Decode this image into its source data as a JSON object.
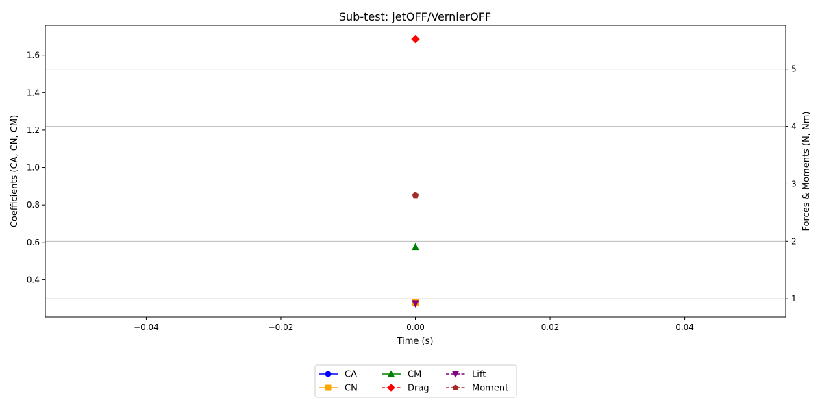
{
  "chart_data": {
    "type": "scatter",
    "title": "Sub-test: jetOFF/VernierOFF",
    "xlabel": "Time (s)",
    "ylabel_left": "Coefficients (CA, CN, CM)",
    "ylabel_right": "Forces & Moments (N, Nm)",
    "xlim": [
      -0.055,
      0.055
    ],
    "ylim_left": [
      0.2,
      1.76
    ],
    "ylim_right": [
      0.68,
      5.76
    ],
    "x_ticks": [
      -0.04,
      -0.02,
      0.0,
      0.02,
      0.04
    ],
    "x_tick_labels": [
      "−0.04",
      "−0.02",
      "0.00",
      "0.02",
      "0.04"
    ],
    "y_left_ticks": [
      0.4,
      0.6,
      0.8,
      1.0,
      1.2,
      1.4,
      1.6
    ],
    "y_left_tick_labels": [
      "0.4",
      "0.6",
      "0.8",
      "1.0",
      "1.2",
      "1.4",
      "1.6"
    ],
    "y_right_ticks": [
      1,
      2,
      3,
      4,
      5
    ],
    "y_right_tick_labels": [
      "1",
      "2",
      "3",
      "4",
      "5"
    ],
    "grid": "right-axis horizontal",
    "legend_position": "bottom-center",
    "series": [
      {
        "name": "CA",
        "axis": "left",
        "x": [
          0.0
        ],
        "y": [
          0.28
        ],
        "color": "#0000ff",
        "marker": "circle",
        "linestyle": "solid"
      },
      {
        "name": "CN",
        "axis": "left",
        "x": [
          0.0
        ],
        "y": [
          0.28
        ],
        "color": "#ffa500",
        "marker": "square",
        "linestyle": "solid"
      },
      {
        "name": "CM",
        "axis": "left",
        "x": [
          0.0
        ],
        "y": [
          0.575
        ],
        "color": "#008000",
        "marker": "triangle-up",
        "linestyle": "solid"
      },
      {
        "name": "Drag",
        "axis": "right",
        "x": [
          0.0
        ],
        "y": [
          5.52
        ],
        "color": "#ff0000",
        "marker": "diamond",
        "linestyle": "dashed"
      },
      {
        "name": "Lift",
        "axis": "right",
        "x": [
          0.0
        ],
        "y": [
          0.92
        ],
        "color": "#800080",
        "marker": "triangle-down",
        "linestyle": "dashed"
      },
      {
        "name": "Moment",
        "axis": "right",
        "x": [
          0.0
        ],
        "y": [
          2.8
        ],
        "color": "#a52a2a",
        "marker": "pentagon",
        "linestyle": "dashed"
      }
    ]
  }
}
